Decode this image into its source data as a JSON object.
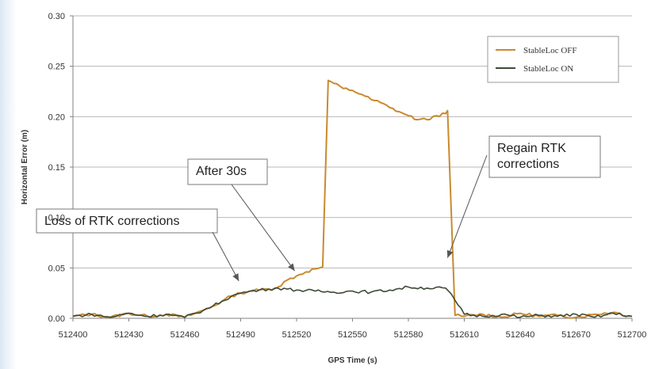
{
  "chart_data": {
    "type": "line",
    "title": "",
    "xlabel": "GPS Time (s)",
    "ylabel": "Horizontal Error (m)",
    "xlim": [
      512400,
      512700
    ],
    "ylim": [
      0,
      0.3
    ],
    "xticks": [
      512400,
      512430,
      512460,
      512490,
      512520,
      512550,
      512580,
      512610,
      512640,
      512670,
      512700
    ],
    "yticks": [
      "0.00",
      "0.05",
      "0.10",
      "0.15",
      "0.20",
      "0.25",
      "0.30"
    ],
    "grid": "horizontal",
    "legend_position": "top-right",
    "series": [
      {
        "name": "StableLoc OFF",
        "color": "#c98a2e",
        "x": [
          512400,
          512410,
          512420,
          512430,
          512440,
          512450,
          512460,
          512470,
          512475,
          512480,
          512485,
          512490,
          512495,
          512500,
          512505,
          512510,
          512515,
          512520,
          512525,
          512530,
          512534,
          512537,
          512540,
          512545,
          512550,
          512555,
          512560,
          512565,
          512570,
          512575,
          512580,
          512585,
          512590,
          512595,
          512600,
          512601,
          512605,
          512610,
          512620,
          512630,
          512640,
          512650,
          512660,
          512670,
          512680,
          512690,
          512700
        ],
        "y": [
          0.002,
          0.004,
          0.001,
          0.005,
          0.002,
          0.004,
          0.001,
          0.008,
          0.012,
          0.017,
          0.022,
          0.025,
          0.027,
          0.028,
          0.029,
          0.031,
          0.038,
          0.042,
          0.046,
          0.049,
          0.051,
          0.236,
          0.233,
          0.228,
          0.226,
          0.222,
          0.217,
          0.214,
          0.209,
          0.205,
          0.201,
          0.197,
          0.197,
          0.201,
          0.203,
          0.206,
          0.003,
          0.002,
          0.004,
          0.001,
          0.005,
          0.002,
          0.003,
          0.001,
          0.004,
          0.006,
          0.002
        ]
      },
      {
        "name": "StableLoc ON",
        "color": "#3e4a36",
        "x": [
          512400,
          512410,
          512420,
          512430,
          512440,
          512450,
          512460,
          512470,
          512475,
          512480,
          512485,
          512490,
          512495,
          512500,
          512505,
          512510,
          512515,
          512520,
          512530,
          512540,
          512550,
          512560,
          512570,
          512580,
          512590,
          512600,
          512601,
          512605,
          512610,
          512620,
          512630,
          512640,
          512650,
          512660,
          512670,
          512680,
          512690,
          512700
        ],
        "y": [
          0.002,
          0.004,
          0.001,
          0.005,
          0.002,
          0.004,
          0.001,
          0.008,
          0.012,
          0.017,
          0.022,
          0.025,
          0.027,
          0.028,
          0.029,
          0.03,
          0.029,
          0.028,
          0.027,
          0.026,
          0.027,
          0.026,
          0.028,
          0.031,
          0.03,
          0.03,
          0.028,
          0.018,
          0.004,
          0.002,
          0.004,
          0.001,
          0.003,
          0.002,
          0.004,
          0.001,
          0.005,
          0.002
        ]
      }
    ],
    "annotations": [
      {
        "text": "Loss of RTK corrections",
        "at": [
          512489,
          0.037
        ]
      },
      {
        "text": "After 30s",
        "at": [
          512519,
          0.047
        ]
      },
      {
        "text": "Regain RTK\ncorrections",
        "at": [
          512601,
          0.06
        ]
      }
    ]
  }
}
